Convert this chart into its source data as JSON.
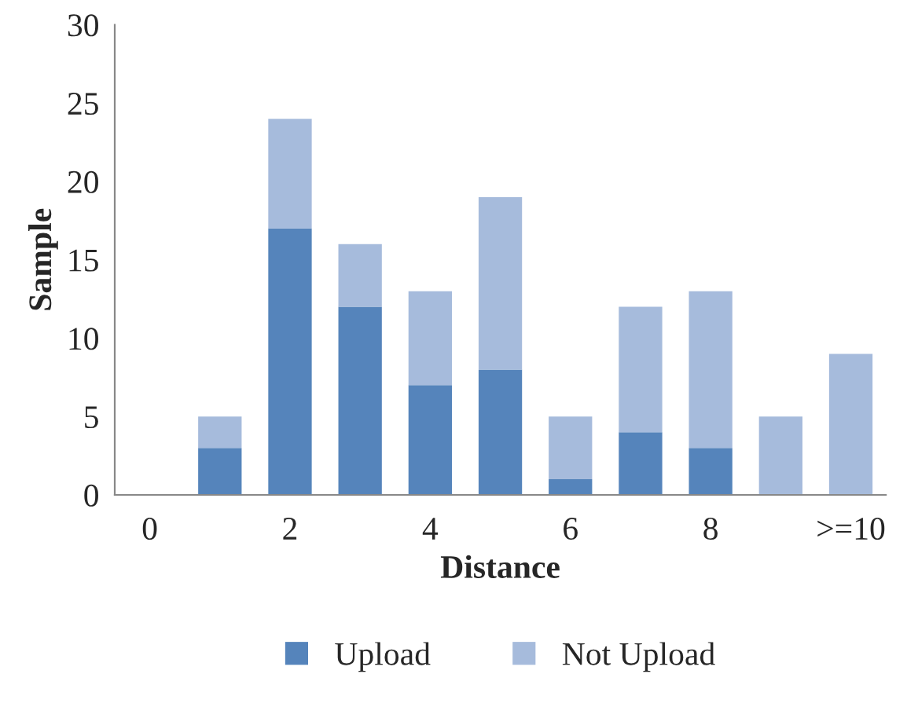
{
  "chart_data": {
    "type": "bar",
    "stacked": true,
    "xlabel": "Distance",
    "ylabel": "Sample",
    "categories": [
      "0",
      null,
      "2",
      null,
      "4",
      null,
      "6",
      null,
      "8",
      null,
      ">=10"
    ],
    "series": [
      {
        "name": "Upload",
        "color": "#5584bb",
        "values": [
          0,
          3,
          17,
          12,
          7,
          8,
          1,
          4,
          3,
          0,
          0
        ]
      },
      {
        "name": "Not Upload",
        "color": "#a6bbdc",
        "values": [
          0,
          2,
          7,
          4,
          6,
          11,
          4,
          8,
          10,
          5,
          9
        ]
      }
    ],
    "ylim": [
      0,
      30
    ],
    "yticks": [
      0,
      5,
      10,
      15,
      20,
      25,
      30
    ],
    "grid": false,
    "legend": "bottom"
  }
}
